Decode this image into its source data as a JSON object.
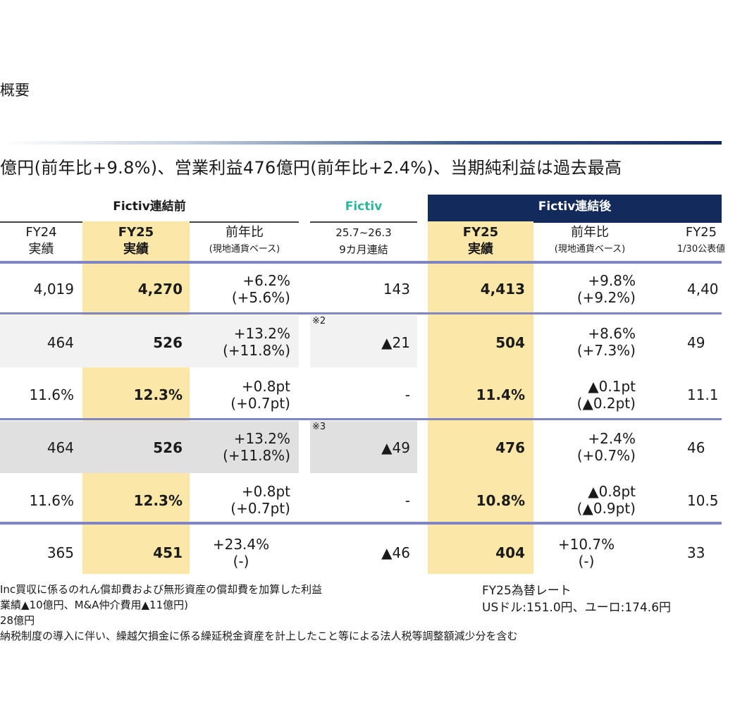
{
  "page": {
    "title": "概要",
    "headline": "億円(前年比+9.8%)、営業利益476億円(前年比+2.4%)、当期純利益は過去最高"
  },
  "groups": {
    "pre": "Fictiv連結前",
    "fictiv": "Fictiv",
    "post": "Fictiv連結後"
  },
  "columns": {
    "fy24": [
      "FY24",
      "実績"
    ],
    "fy25_pre": [
      "FY25",
      "実績"
    ],
    "yoy_pre": [
      "前年比",
      "(現地通貨ベース)"
    ],
    "fictiv": [
      "25.7~26.3",
      "9カ月連結"
    ],
    "fy25_post": [
      "FY25",
      "実績"
    ],
    "yoy_post": [
      "前年比",
      "(現地通貨ベース)"
    ],
    "forecast": [
      "FY25",
      "1/30公表値"
    ]
  },
  "rows": [
    {
      "fy24": "4,019",
      "fy25": "4,270",
      "yoy": [
        "+6.2%",
        "(+5.6%)"
      ],
      "fictiv": "143",
      "fictiv_mark": "",
      "post": "4,413",
      "yoy_post": [
        "+9.8%",
        "(+9.2%)"
      ],
      "forecast": "4,40"
    },
    {
      "fy24": "464",
      "fy25": "526",
      "yoy": [
        "+13.2%",
        "(+11.8%)"
      ],
      "fictiv": "▲21",
      "fictiv_mark": "※2",
      "post": "504",
      "yoy_post": [
        "+8.6%",
        "(+7.3%)"
      ],
      "forecast": "49"
    },
    {
      "fy24": "11.6%",
      "fy25": "12.3%",
      "yoy": [
        "+0.8pt",
        "(+0.7pt)"
      ],
      "fictiv": "-",
      "fictiv_mark": "",
      "post": "11.4%",
      "yoy_post": [
        "▲0.1pt",
        "(▲0.2pt)"
      ],
      "forecast": "11.1"
    },
    {
      "fy24": "464",
      "fy25": "526",
      "yoy": [
        "+13.2%",
        "(+11.8%)"
      ],
      "fictiv": "▲49",
      "fictiv_mark": "※3",
      "post": "476",
      "yoy_post": [
        "+2.4%",
        "(+0.7%)"
      ],
      "forecast": "46"
    },
    {
      "fy24": "11.6%",
      "fy25": "12.3%",
      "yoy": [
        "+0.8pt",
        "(+0.7pt)"
      ],
      "fictiv": "-",
      "fictiv_mark": "",
      "post": "10.8%",
      "yoy_post": [
        "▲0.8pt",
        "(▲0.9pt)"
      ],
      "forecast": "10.5"
    },
    {
      "fy24": "365",
      "fy25": "451",
      "yoy": [
        "+23.4%",
        "(-)"
      ],
      "fictiv": "▲46",
      "fictiv_mark": "",
      "post": "404",
      "yoy_post": [
        "+10.7%",
        "(-)"
      ],
      "forecast": "33"
    }
  ],
  "notes": [
    "Inc買収に係るのれん償却費および無形資産の償却費を加算した利益",
    "業績▲10億円、M&A仲介費用▲11億円)",
    "28億円",
    "納税制度の導入に伴い、繰越欠損金に係る繰延税金資産を計上したこと等による法人税等調整額減少分を含む"
  ],
  "fx": {
    "title": "FY25為替レート",
    "rates": "USドル:151.0円、ユーロ:174.6円"
  },
  "colors": {
    "navy": "#132a5c",
    "highlight": "#fbe7a8",
    "fictiv_green": "#2bb89a",
    "rule_purple": "#7f85c2"
  }
}
